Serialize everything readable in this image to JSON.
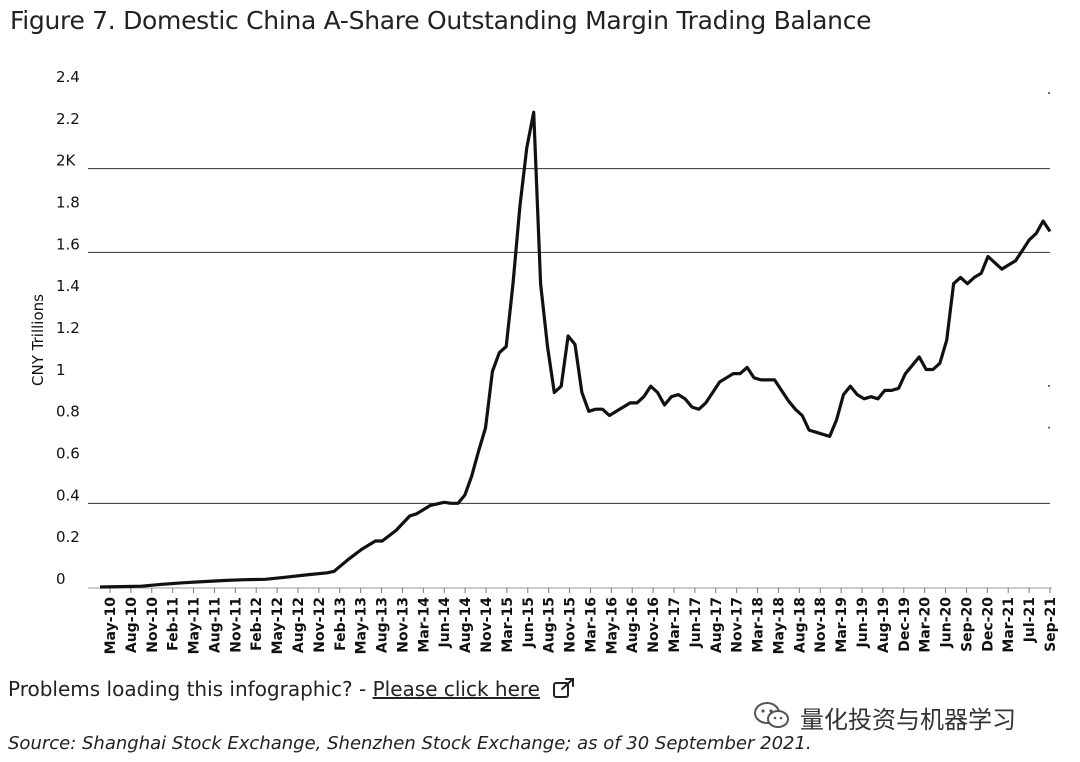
{
  "page": {
    "title": "Figure 7. Domestic China A-Share Outstanding Margin Trading Balance",
    "problems_text": "Problems loading this infographic? - ",
    "problems_link": "Please click here",
    "source": "Source: Shanghai Stock Exchange, Shenzhen Stock Exchange; as of 30 September 2021.",
    "watermark": "量化投资与机器学习",
    "watermark_icon": "wechat-icon",
    "link_icon": "external-link-icon"
  },
  "chart_data": {
    "type": "line",
    "title": "Figure 7. Domestic China A-Share Outstanding Margin Trading Balance",
    "xlabel": "",
    "ylabel": "CNY Trillions",
    "ylim": [
      0,
      2.4
    ],
    "ytick_values": [
      0,
      0.2,
      0.4,
      0.6,
      0.8,
      1,
      1.2,
      1.4,
      1.6,
      1.8,
      2,
      2.2,
      2.4
    ],
    "ytick_labels": [
      "0",
      "0.2",
      "0.4",
      "0.6",
      "0.8",
      "1",
      "1.2",
      "1.4",
      "1.6",
      "1.8",
      "2K",
      "2.2",
      "2.4"
    ],
    "gridlines_at": [
      0.4,
      1.6,
      2.0
    ],
    "x_start": "2010-03",
    "x_end": "2021-09",
    "categories": [
      "May-10",
      "Aug-10",
      "Nov-10",
      "Feb-11",
      "May-11",
      "Aug-11",
      "Nov-11",
      "Feb-12",
      "May-12",
      "Aug-12",
      "Nov-12",
      "Feb-13",
      "May-13",
      "Aug-13",
      "Nov-13",
      "Mar-14",
      "Jun-14",
      "Aug-14",
      "Nov-14",
      "Mar-15",
      "Jun-15",
      "Aug-15",
      "Nov-15",
      "Mar-16",
      "May-16",
      "Aug-16",
      "Nov-16",
      "Mar-17",
      "Jun-17",
      "Aug-17",
      "Nov-17",
      "Mar-18",
      "May-18",
      "Aug-18",
      "Nov-18",
      "Mar-19",
      "Jun-19",
      "Aug-19",
      "Dec-19",
      "Mar-20",
      "Jun-20",
      "Sep-20",
      "Dec-20",
      "Mar-21",
      "Jul-21",
      "Sep-21"
    ],
    "series": [
      {
        "points": [
          [
            "2010-03",
            0.0
          ],
          [
            "2010-06",
            0.002
          ],
          [
            "2010-09",
            0.004
          ],
          [
            "2010-12",
            0.013
          ],
          [
            "2011-03",
            0.02
          ],
          [
            "2011-06",
            0.026
          ],
          [
            "2011-09",
            0.031
          ],
          [
            "2011-12",
            0.035
          ],
          [
            "2012-03",
            0.037
          ],
          [
            "2012-06",
            0.047
          ],
          [
            "2012-09",
            0.058
          ],
          [
            "2012-12",
            0.068
          ],
          [
            "2013-01",
            0.075
          ],
          [
            "2013-03",
            0.13
          ],
          [
            "2013-05",
            0.18
          ],
          [
            "2013-07",
            0.22
          ],
          [
            "2013-08",
            0.22
          ],
          [
            "2013-10",
            0.27
          ],
          [
            "2013-12",
            0.34
          ],
          [
            "2014-01",
            0.35
          ],
          [
            "2014-03",
            0.39
          ],
          [
            "2014-05",
            0.405
          ],
          [
            "2014-06",
            0.4
          ],
          [
            "2014-07",
            0.4
          ],
          [
            "2014-08",
            0.44
          ],
          [
            "2014-09",
            0.53
          ],
          [
            "2014-10",
            0.65
          ],
          [
            "2014-11",
            0.76
          ],
          [
            "2014-12",
            1.03
          ],
          [
            "2015-01",
            1.12
          ],
          [
            "2015-02",
            1.15
          ],
          [
            "2015-03",
            1.45
          ],
          [
            "2015-04",
            1.82
          ],
          [
            "2015-05",
            2.1
          ],
          [
            "2015-06",
            2.27
          ],
          [
            "2015-07",
            1.45
          ],
          [
            "2015-08",
            1.15
          ],
          [
            "2015-09",
            0.93
          ],
          [
            "2015-10",
            0.96
          ],
          [
            "2015-11",
            1.2
          ],
          [
            "2015-12",
            1.16
          ],
          [
            "2016-01",
            0.93
          ],
          [
            "2016-02",
            0.84
          ],
          [
            "2016-03",
            0.85
          ],
          [
            "2016-04",
            0.85
          ],
          [
            "2016-05",
            0.82
          ],
          [
            "2016-06",
            0.84
          ],
          [
            "2016-07",
            0.86
          ],
          [
            "2016-08",
            0.88
          ],
          [
            "2016-09",
            0.88
          ],
          [
            "2016-10",
            0.91
          ],
          [
            "2016-11",
            0.96
          ],
          [
            "2016-12",
            0.93
          ],
          [
            "2017-01",
            0.87
          ],
          [
            "2017-02",
            0.91
          ],
          [
            "2017-03",
            0.92
          ],
          [
            "2017-04",
            0.9
          ],
          [
            "2017-05",
            0.86
          ],
          [
            "2017-06",
            0.85
          ],
          [
            "2017-07",
            0.88
          ],
          [
            "2017-08",
            0.93
          ],
          [
            "2017-09",
            0.98
          ],
          [
            "2017-10",
            1.0
          ],
          [
            "2017-11",
            1.02
          ],
          [
            "2017-12",
            1.02
          ],
          [
            "2018-01",
            1.05
          ],
          [
            "2018-02",
            1.0
          ],
          [
            "2018-03",
            0.99
          ],
          [
            "2018-04",
            0.99
          ],
          [
            "2018-05",
            0.99
          ],
          [
            "2018-06",
            0.94
          ],
          [
            "2018-07",
            0.89
          ],
          [
            "2018-08",
            0.85
          ],
          [
            "2018-09",
            0.82
          ],
          [
            "2018-10",
            0.75
          ],
          [
            "2018-11",
            0.74
          ],
          [
            "2018-12",
            0.73
          ],
          [
            "2019-01",
            0.72
          ],
          [
            "2019-02",
            0.8
          ],
          [
            "2019-03",
            0.92
          ],
          [
            "2019-04",
            0.96
          ],
          [
            "2019-05",
            0.92
          ],
          [
            "2019-06",
            0.9
          ],
          [
            "2019-07",
            0.91
          ],
          [
            "2019-08",
            0.9
          ],
          [
            "2019-09",
            0.94
          ],
          [
            "2019-10",
            0.94
          ],
          [
            "2019-11",
            0.95
          ],
          [
            "2019-12",
            1.02
          ],
          [
            "2020-01",
            1.06
          ],
          [
            "2020-02",
            1.1
          ],
          [
            "2020-03",
            1.04
          ],
          [
            "2020-04",
            1.04
          ],
          [
            "2020-05",
            1.07
          ],
          [
            "2020-06",
            1.18
          ],
          [
            "2020-07",
            1.45
          ],
          [
            "2020-08",
            1.48
          ],
          [
            "2020-09",
            1.45
          ],
          [
            "2020-10",
            1.48
          ],
          [
            "2020-11",
            1.5
          ],
          [
            "2020-12",
            1.58
          ],
          [
            "2021-01",
            1.55
          ],
          [
            "2021-02",
            1.52
          ],
          [
            "2021-03",
            1.54
          ],
          [
            "2021-04",
            1.56
          ],
          [
            "2021-05",
            1.61
          ],
          [
            "2021-06",
            1.66
          ],
          [
            "2021-07",
            1.69
          ],
          [
            "2021-08",
            1.75
          ],
          [
            "2021-09",
            1.7
          ]
        ]
      }
    ],
    "grid": "horizontal partial",
    "legend": "none",
    "line_color": "#111111"
  }
}
